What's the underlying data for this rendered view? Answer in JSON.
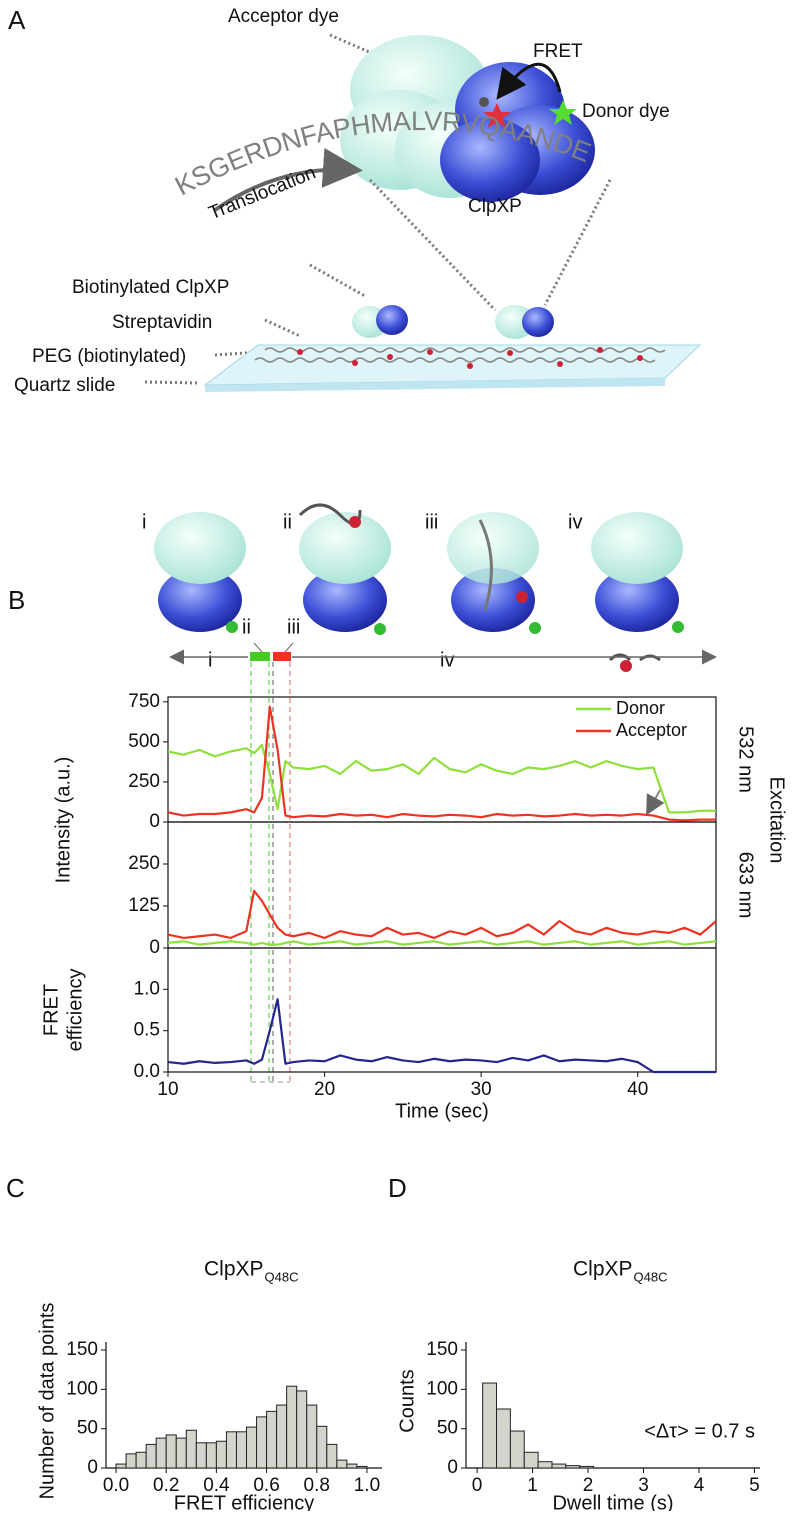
{
  "panel_a": {
    "label": "A",
    "acceptor": "Acceptor dye",
    "fret": "FRET",
    "donor": "Donor dye",
    "sequence": "KSGERDNFAPHMALVRVQAANDE",
    "translocation": "Translocation",
    "complex": "ClpXP",
    "biotinylated": "Biotinylated ClpXP",
    "streptavidin": "Streptavidin",
    "peg": "PEG (biotinylated)",
    "slide": "Quartz slide"
  },
  "panel_b": {
    "label": "B",
    "cartoon_states": [
      "i",
      "ii",
      "iii",
      "iv"
    ],
    "timeline_states": [
      "i",
      "ii",
      "iii",
      "iv"
    ],
    "intensity_label": "Intensity (a.u.)",
    "excitation": "Excitation"
  },
  "panel_c": {
    "label": "C"
  },
  "panel_d": {
    "label": "D"
  },
  "chart_data": [
    {
      "type": "line",
      "excitation_label": "532 nm",
      "legend": "upper right",
      "x": [
        10,
        11,
        12,
        13,
        14,
        15,
        15.5,
        16,
        16.5,
        17,
        17.5,
        18,
        19,
        20,
        21,
        22,
        23,
        24,
        25,
        26,
        27,
        28,
        29,
        30,
        31,
        32,
        33,
        34,
        35,
        36,
        37,
        38,
        39,
        40,
        41,
        42,
        43,
        44,
        45
      ],
      "xlim": [
        10,
        45
      ],
      "ylim": [
        0,
        780
      ],
      "yticks": [
        0,
        250,
        500,
        750
      ],
      "series": [
        {
          "name": "Donor",
          "color": "#8ee03a",
          "values": [
            440,
            420,
            450,
            410,
            440,
            460,
            430,
            480,
            300,
            80,
            380,
            340,
            330,
            350,
            300,
            380,
            320,
            330,
            360,
            300,
            400,
            330,
            310,
            360,
            320,
            300,
            340,
            330,
            350,
            380,
            340,
            380,
            350,
            330,
            340,
            60,
            60,
            70,
            70
          ]
        },
        {
          "name": "Acceptor",
          "color": "#ee3322",
          "values": [
            60,
            40,
            50,
            50,
            60,
            80,
            60,
            150,
            720,
            450,
            40,
            30,
            40,
            35,
            50,
            40,
            45,
            30,
            50,
            40,
            35,
            45,
            40,
            30,
            50,
            40,
            45,
            35,
            40,
            50,
            40,
            45,
            40,
            50,
            40,
            15,
            10,
            15,
            15
          ]
        }
      ]
    },
    {
      "type": "line",
      "excitation_label": "633 nm",
      "x": [
        10,
        11,
        12,
        13,
        14,
        15,
        15.5,
        16,
        16.5,
        17,
        17.5,
        18,
        19,
        20,
        21,
        22,
        23,
        24,
        25,
        26,
        27,
        28,
        29,
        30,
        31,
        32,
        33,
        34,
        35,
        36,
        37,
        38,
        39,
        40,
        41,
        42,
        43,
        44,
        45
      ],
      "xlim": [
        10,
        45
      ],
      "ylim": [
        0,
        375
      ],
      "yticks": [
        0,
        125,
        250
      ],
      "series": [
        {
          "color": "#8ee03a",
          "values": [
            15,
            20,
            10,
            15,
            20,
            15,
            10,
            15,
            10,
            10,
            15,
            20,
            10,
            15,
            20,
            10,
            15,
            20,
            10,
            15,
            20,
            10,
            15,
            20,
            10,
            15,
            20,
            10,
            15,
            20,
            10,
            15,
            20,
            10,
            15,
            20,
            10,
            15,
            20
          ]
        },
        {
          "color": "#ee3322",
          "values": [
            40,
            30,
            35,
            40,
            30,
            50,
            170,
            140,
            100,
            60,
            40,
            35,
            45,
            30,
            50,
            40,
            35,
            60,
            40,
            45,
            30,
            50,
            40,
            60,
            35,
            45,
            70,
            40,
            80,
            50,
            40,
            60,
            45,
            40,
            50,
            45,
            60,
            40,
            80
          ]
        }
      ]
    },
    {
      "type": "line",
      "ylabel": [
        "FRET",
        "efficiency"
      ],
      "xlabel": "Time (sec)",
      "x": [
        10,
        11,
        12,
        13,
        14,
        15,
        15.5,
        16,
        16.5,
        17,
        17.5,
        18,
        19,
        20,
        21,
        22,
        23,
        24,
        25,
        26,
        27,
        28,
        29,
        30,
        31,
        32,
        33,
        34,
        35,
        36,
        37,
        38,
        39,
        40,
        41,
        42,
        43,
        44,
        45
      ],
      "xlim": [
        10,
        45
      ],
      "xticks": [
        10,
        20,
        30,
        40
      ],
      "ylim": [
        0,
        1.5
      ],
      "yticks": [
        {
          "value": 0,
          "label": "0.0"
        },
        0.5,
        {
          "value": 1,
          "label": "1.0"
        }
      ],
      "series": [
        {
          "color": "#25258f",
          "values": [
            0.12,
            0.1,
            0.13,
            0.11,
            0.12,
            0.14,
            0.1,
            0.15,
            0.5,
            0.88,
            0.1,
            0.12,
            0.14,
            0.13,
            0.2,
            0.15,
            0.13,
            0.18,
            0.14,
            0.12,
            0.16,
            0.13,
            0.15,
            0.14,
            0.12,
            0.17,
            0.14,
            0.2,
            0.13,
            0.15,
            0.14,
            0.13,
            0.16,
            0.12,
            0.0,
            0.0,
            0.0,
            0.0,
            0.0
          ]
        }
      ]
    },
    {
      "type": "histogram",
      "title": "ClpXP",
      "title_subscript": "Q48C",
      "xlabel": "FRET efficiency",
      "ylabel": "Number of data points",
      "color": "#d4d4cc",
      "bins": [
        0,
        0.04,
        0.08,
        0.12,
        0.16,
        0.2,
        0.24,
        0.28,
        0.32,
        0.36,
        0.4,
        0.44,
        0.48,
        0.52,
        0.56,
        0.6,
        0.64,
        0.68,
        0.72,
        0.76,
        0.8,
        0.84,
        0.88,
        0.92,
        0.96,
        1.0
      ],
      "values": [
        5,
        18,
        20,
        30,
        38,
        42,
        38,
        48,
        32,
        32,
        34,
        46,
        46,
        52,
        65,
        72,
        80,
        104,
        98,
        80,
        53,
        30,
        10,
        5,
        2
      ],
      "xlim": [
        -0.04,
        1.06
      ],
      "xticks": [
        {
          "value": 0,
          "label": "0.0"
        },
        0.2,
        0.4,
        0.6,
        0.8,
        {
          "value": 1,
          "label": "1.0"
        }
      ],
      "ylim": [
        0,
        150
      ],
      "yticks": [
        0,
        50,
        100,
        150
      ]
    },
    {
      "type": "histogram",
      "title": "ClpXP",
      "title_subscript": "Q48C",
      "xlabel": "Dwell time (s)",
      "ylabel": "Counts",
      "annotation": "<Δτ> = 0.7 s",
      "color": "#d4d4cc",
      "bins": [
        0.1,
        0.35,
        0.6,
        0.85,
        1.1,
        1.35,
        1.6,
        1.85,
        2.1
      ],
      "values": [
        108,
        75,
        47,
        20,
        8,
        5,
        3,
        2
      ],
      "xlim": [
        -0.2,
        5.1
      ],
      "xticks": [
        0,
        1,
        2,
        3,
        4,
        5
      ],
      "ylim": [
        0,
        150
      ],
      "yticks": [
        0,
        50,
        100,
        150
      ]
    }
  ]
}
